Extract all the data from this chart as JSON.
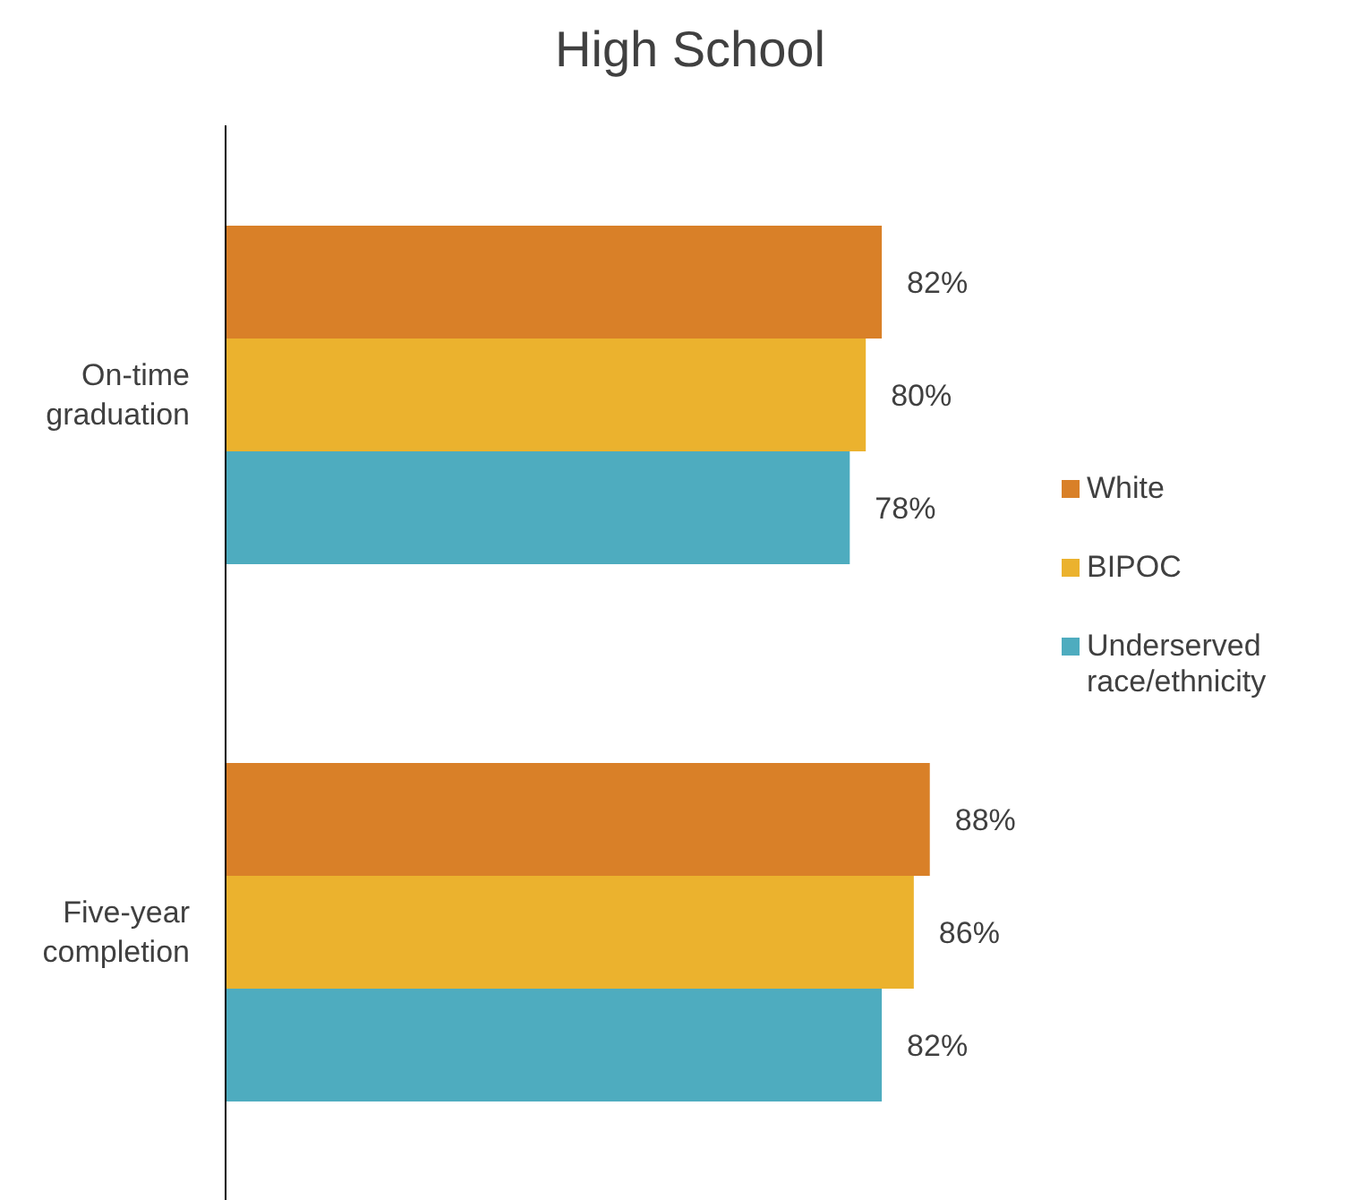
{
  "chart_data": {
    "type": "bar",
    "orientation": "horizontal",
    "title": "High School",
    "categories": [
      "On-time graduation",
      "Five-year completion"
    ],
    "legend": "right",
    "grid": false,
    "series": [
      {
        "name": "White",
        "color": "#d98028",
        "values": [
          82,
          88
        ],
        "value_labels": [
          "82%",
          "88%"
        ]
      },
      {
        "name": "BIPOC",
        "color": "#ebb22e",
        "values": [
          80,
          86
        ],
        "value_labels": [
          "80%",
          "86%"
        ]
      },
      {
        "name": "Underserved race/ethnicity",
        "color": "#4eacbf",
        "values": [
          78,
          82
        ],
        "value_labels": [
          "78%",
          "82%"
        ]
      }
    ]
  }
}
